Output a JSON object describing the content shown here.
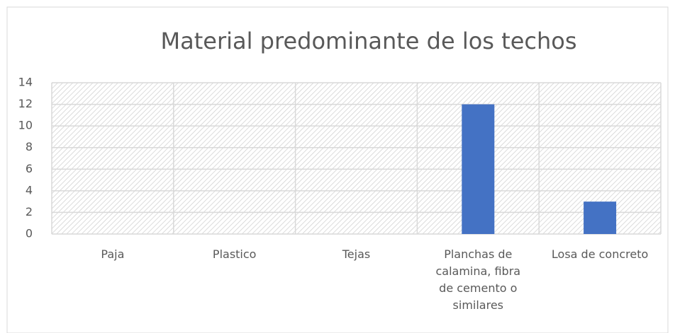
{
  "chart_data": {
    "type": "bar",
    "title": "Material predominante de los techos",
    "categories": [
      "Paja",
      "Plastico",
      "Tejas",
      "Planchas de calamina, fibra de cemento o similares",
      "Losa de concreto"
    ],
    "values": [
      0,
      0,
      0,
      12,
      3
    ],
    "color": "#4472c4",
    "ylim": [
      0,
      14
    ],
    "yticks": [
      0,
      2,
      4,
      6,
      8,
      10,
      12,
      14
    ],
    "grid": true
  }
}
